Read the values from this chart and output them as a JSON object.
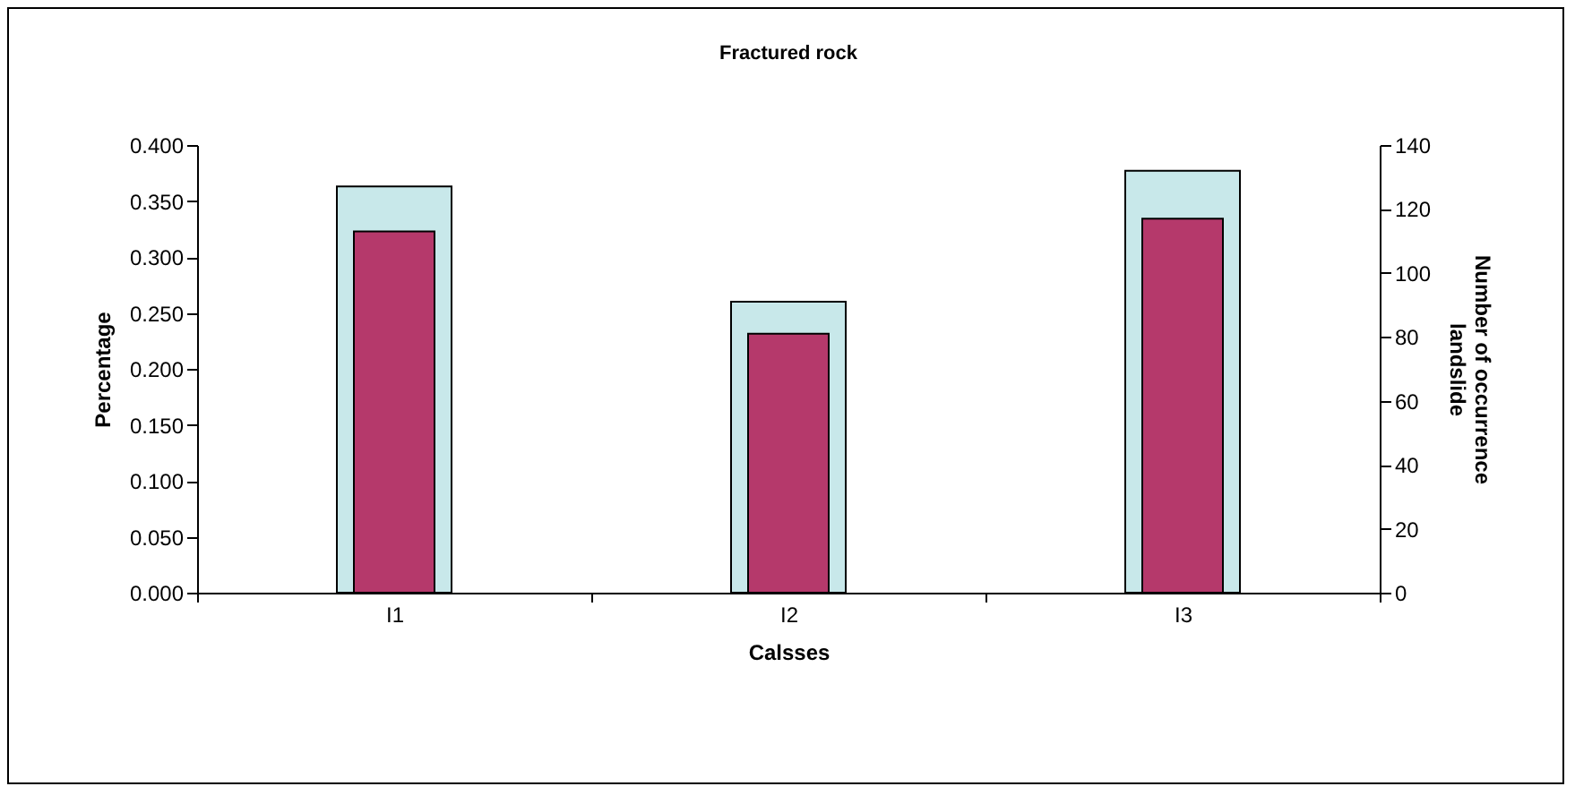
{
  "chart_data": {
    "type": "bar",
    "title": "Fractured rock",
    "xlabel": "Calsses",
    "ylabel": "Percentage",
    "y2label": "Number of occurrence\nlandslide",
    "categories": [
      "I1",
      "I2",
      "I3"
    ],
    "series": [
      {
        "color": "#c8e8ea",
        "values": [
          0.363,
          0.26,
          0.377
        ]
      },
      {
        "color": "#b5396b",
        "values": [
          113,
          81,
          117
        ],
        "axis": "y2"
      }
    ],
    "ylim": [
      0,
      0.4
    ],
    "yticks": [
      {
        "value": 0,
        "label": "0.000"
      },
      {
        "value": 0.05,
        "label": "0.050"
      },
      {
        "value": 0.1,
        "label": "0.100"
      },
      {
        "value": 0.15,
        "label": "0.150"
      },
      {
        "value": 0.2,
        "label": "0.200"
      },
      {
        "value": 0.25,
        "label": "0.250"
      },
      {
        "value": 0.3,
        "label": "0.300"
      },
      {
        "value": 0.35,
        "label": "0.350"
      },
      {
        "value": 0.4,
        "label": "0.400"
      }
    ],
    "y2lim": [
      0,
      140
    ],
    "y2ticks": [
      0,
      20,
      40,
      60,
      80,
      100,
      120,
      140
    ],
    "grid": false
  }
}
